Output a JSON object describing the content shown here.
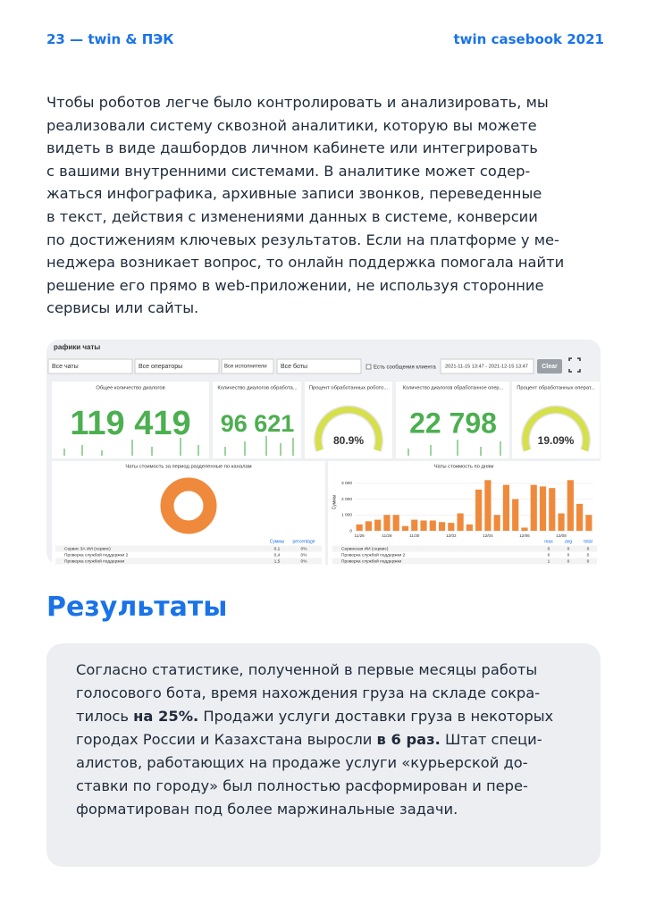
{
  "header": {
    "left": "23 — twin & ПЭК",
    "right": "twin casebook 2021"
  },
  "intro_lines": [
    "Чтобы роботов легче было контролировать и анализировать, мы",
    "реализовали систему сквозной аналитики, которую вы можете",
    "видеть в виде дашбордов личном кабинете или интегрировать",
    "с вашими внутренними системами. В аналитике может содер-",
    "жаться инфографика, архивные записи звонков, переведенные",
    "в текст, действия с изменениями данных в системе, конверсии",
    "по достижениям ключевых результатов. Если на платформе у ме-",
    "неджера возникает вопрос, то онлайн поддержка помогала найти",
    "решение его прямо в web-приложении, не используя сторонние",
    "сервисы или сайты."
  ],
  "dashboard": {
    "title": "рафики чаты",
    "filters": [
      "Все чаты",
      "Все операторы",
      "Все исполнители",
      "Все боты"
    ],
    "checkbox": "Есть сообщения клиента",
    "date_range": "2021-11-15 13:47 - 2021-12-15 13:47",
    "clear": "Clear",
    "cards": [
      {
        "title": "Общее количество диалогов",
        "value": "119 419"
      },
      {
        "title": "Количество диалогов обработа...",
        "value": "96 621"
      },
      {
        "title": "Количество диалогов обработанное опер...",
        "value": "22 798"
      }
    ],
    "gauges": [
      {
        "title": "Процент обработанных робото...",
        "value": "80.9%"
      },
      {
        "title": "Процент обработанных операт...",
        "value": "19.09%"
      }
    ],
    "donut_title": "Чаты стоимость за период разделенные по каналам",
    "donut_table": {
      "header": [
        "Суммы",
        "percentage"
      ],
      "rows": [
        [
          "Сервис 3А ИИ (сервис)",
          "0,1",
          "0%"
        ],
        [
          "Проверка службой поддержки 2",
          "0,4",
          "0%"
        ],
        [
          "Проверка службой поддержки",
          "1,5",
          "0%"
        ]
      ]
    },
    "daily_chart": {
      "type": "bar",
      "title": "Чаты стоимость по дням",
      "y_label": "Суммы",
      "color": "#ef8a3c",
      "categories": [
        "11/26",
        null,
        null,
        "11/28",
        null,
        null,
        "11/30",
        null,
        null,
        null,
        "12/02",
        null,
        null,
        null,
        "12/04",
        null,
        null,
        null,
        "12/06",
        null,
        null,
        null,
        "12/08",
        null,
        null,
        null
      ],
      "values": [
        400,
        600,
        700,
        1000,
        1000,
        300,
        700,
        650,
        650,
        550,
        500,
        1100,
        400,
        2600,
        3200,
        1000,
        2900,
        2000,
        200,
        2900,
        2800,
        2700,
        1100,
        3200,
        1700,
        1000
      ],
      "ylim": [
        0,
        3500
      ],
      "yticks": [
        0,
        {
          "value": 1000,
          "label": "1 000"
        },
        {
          "value": 2000,
          "label": "2 000"
        },
        {
          "value": 3000,
          "label": "3 000"
        }
      ]
    },
    "daily_table": {
      "header": [
        "max",
        "avg",
        "total"
      ],
      "rows": [
        [
          "Сервисная ИИ (сервис)",
          "0",
          "0",
          "0"
        ],
        [
          "Проверка службой поддержки 2",
          "0",
          "0",
          "0"
        ],
        [
          "Проверка службой поддержки",
          "1",
          "0",
          "0"
        ]
      ]
    }
  },
  "results_title": "Результаты",
  "results_lines": [
    [
      {
        "t": "Согласно статистике, полученной в первые месяцы работы"
      }
    ],
    [
      {
        "t": "голосового бота, время нахождения груза  на складе сокра-"
      }
    ],
    [
      {
        "t": "тилось "
      },
      {
        "b": "на 25%."
      },
      {
        "t": " Продажи услуги доставки груза в некоторых"
      }
    ],
    [
      {
        "t": "городах России и Казахстана выросли "
      },
      {
        "b": "в 6 раз."
      },
      {
        "t": " Штат специ-"
      }
    ],
    [
      {
        "t": "алистов, работающих на продаже услуги «курьерской до-"
      }
    ],
    [
      {
        "t": "ставки по городу» был полностью расформирован и пере-"
      }
    ],
    [
      {
        "t": "форматирован под более маржинальные задачи."
      }
    ]
  ]
}
